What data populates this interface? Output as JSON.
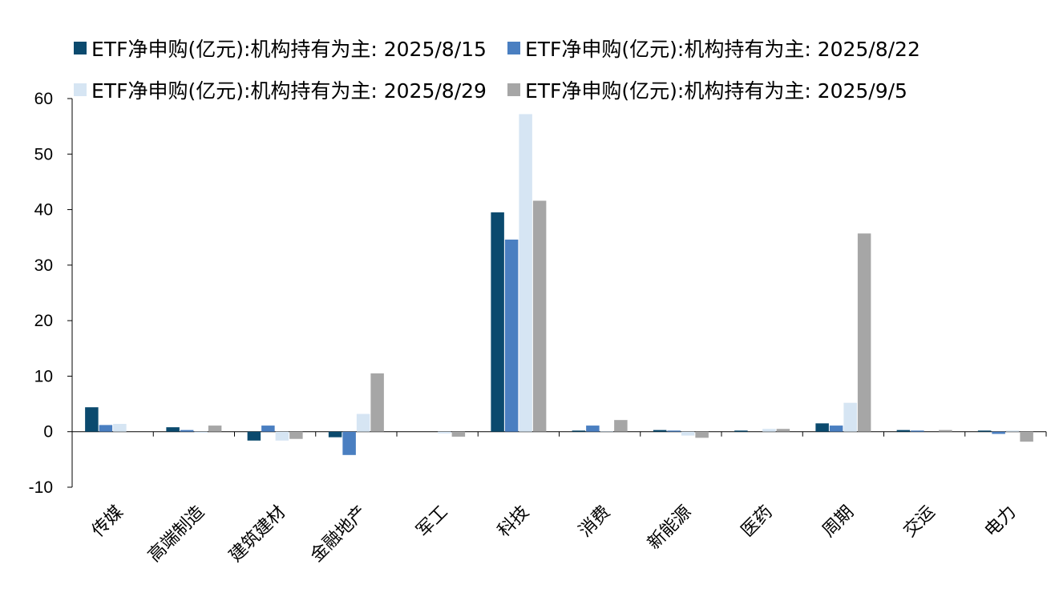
{
  "chart_data": {
    "type": "bar",
    "title": "",
    "xlabel": "",
    "ylabel": "",
    "ylim": [
      -10,
      60
    ],
    "yticks": [
      -10,
      0,
      10,
      20,
      30,
      40,
      50,
      60
    ],
    "grid": false,
    "legend_position": "top",
    "categories": [
      "传媒",
      "高端制造",
      "建筑建材",
      "金融地产",
      "军工",
      "科技",
      "消费",
      "新能源",
      "医药",
      "周期",
      "交运",
      "电力"
    ],
    "series": [
      {
        "name": "ETF净申购(亿元):机构持有为主: 2025/8/15",
        "color": "#0b4a6e",
        "values": [
          4.4,
          0.8,
          -1.6,
          -1.0,
          0.0,
          39.5,
          0.2,
          0.3,
          0.2,
          1.5,
          0.3,
          0.2
        ]
      },
      {
        "name": "ETF净申购(亿元):机构持有为主: 2025/8/22",
        "color": "#4a7fc1",
        "values": [
          1.2,
          0.3,
          1.1,
          -4.2,
          0.0,
          34.6,
          1.1,
          0.2,
          0.0,
          1.1,
          0.2,
          -0.4
        ]
      },
      {
        "name": "ETF净申购(亿元):机构持有为主: 2025/8/29",
        "color": "#d6e5f3",
        "values": [
          1.4,
          -0.2,
          -1.6,
          3.2,
          -0.3,
          57.2,
          0.1,
          -0.7,
          0.5,
          5.2,
          0.0,
          0.2
        ]
      },
      {
        "name": "ETF净申购(亿元):机构持有为主: 2025/9/5",
        "color": "#a6a6a6",
        "values": [
          0.0,
          1.1,
          -1.3,
          10.5,
          -0.9,
          41.6,
          2.1,
          -1.1,
          0.5,
          35.7,
          0.3,
          -1.8
        ]
      }
    ]
  }
}
